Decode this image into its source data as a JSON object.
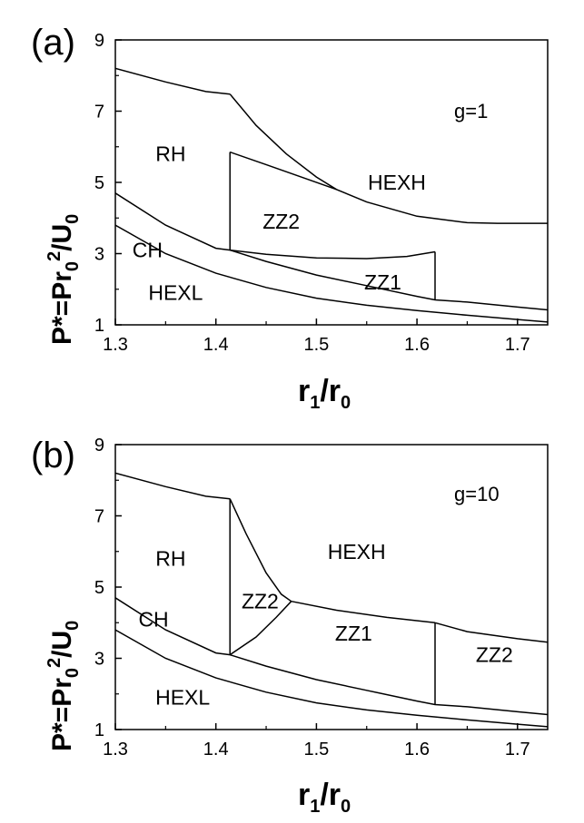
{
  "chart_data": [
    {
      "panel": "(a)",
      "type": "line",
      "annotation": "g=1",
      "xlim": [
        1.3,
        1.73
      ],
      "ylim": [
        1,
        9
      ],
      "xticks": [
        "1.3",
        "1.4",
        "1.5",
        "1.6",
        "1.7"
      ],
      "yticks": [
        "1",
        "3",
        "5",
        "7",
        "9"
      ],
      "xlabel": {
        "main": "r",
        "sub1": "1",
        "mid": "/r",
        "sub2": "0"
      },
      "ylabel": {
        "a": "P*=Pr",
        "b": "0",
        "c": "2",
        "d": "/U",
        "e": "0"
      },
      "regions": [
        {
          "name": "RH",
          "x": 1.355,
          "y": 5.8
        },
        {
          "name": "HEXH",
          "x": 1.58,
          "y": 5.0
        },
        {
          "name": "ZZ2",
          "x": 1.465,
          "y": 3.9
        },
        {
          "name": "CH",
          "x": 1.332,
          "y": 3.1
        },
        {
          "name": "ZZ1",
          "x": 1.566,
          "y": 2.2
        },
        {
          "name": "HEXL",
          "x": 1.36,
          "y": 1.9
        }
      ],
      "curves": [
        {
          "points": [
            [
              1.3,
              8.2
            ],
            [
              1.35,
              7.82
            ],
            [
              1.39,
              7.55
            ],
            [
              1.414,
              7.48
            ]
          ]
        },
        {
          "points": [
            [
              1.414,
              7.48
            ],
            [
              1.44,
              6.6
            ],
            [
              1.47,
              5.8
            ],
            [
              1.5,
              5.15
            ],
            [
              1.52,
              4.8
            ],
            [
              1.55,
              4.45
            ],
            [
              1.6,
              4.05
            ],
            [
              1.65,
              3.87
            ],
            [
              1.68,
              3.85
            ],
            [
              1.73,
              3.85
            ]
          ]
        },
        {
          "points": [
            [
              1.414,
              5.85
            ],
            [
              1.45,
              5.5
            ],
            [
              1.49,
              5.1
            ],
            [
              1.52,
              4.8
            ]
          ]
        },
        {
          "points": [
            [
              1.414,
              5.85
            ],
            [
              1.414,
              3.1
            ]
          ]
        },
        {
          "points": [
            [
              1.414,
              3.1
            ],
            [
              1.45,
              2.98
            ],
            [
              1.5,
              2.88
            ],
            [
              1.55,
              2.86
            ],
            [
              1.59,
              2.92
            ],
            [
              1.618,
              3.05
            ]
          ]
        },
        {
          "points": [
            [
              1.618,
              3.05
            ],
            [
              1.618,
              1.7
            ]
          ]
        },
        {
          "points": [
            [
              1.3,
              4.7
            ],
            [
              1.35,
              3.8
            ],
            [
              1.4,
              3.15
            ],
            [
              1.414,
              3.1
            ],
            [
              1.45,
              2.78
            ],
            [
              1.5,
              2.4
            ],
            [
              1.55,
              2.1
            ],
            [
              1.6,
              1.8
            ],
            [
              1.618,
              1.7
            ],
            [
              1.65,
              1.64
            ],
            [
              1.7,
              1.5
            ],
            [
              1.73,
              1.42
            ]
          ]
        },
        {
          "points": [
            [
              1.3,
              3.8
            ],
            [
              1.35,
              3.0
            ],
            [
              1.4,
              2.45
            ],
            [
              1.45,
              2.05
            ],
            [
              1.5,
              1.75
            ],
            [
              1.55,
              1.55
            ],
            [
              1.6,
              1.4
            ],
            [
              1.65,
              1.27
            ],
            [
              1.7,
              1.15
            ],
            [
              1.73,
              1.08
            ]
          ]
        }
      ]
    },
    {
      "panel": "(b)",
      "type": "line",
      "annotation": "g=10",
      "xlim": [
        1.3,
        1.73
      ],
      "ylim": [
        1,
        9
      ],
      "xticks": [
        "1.3",
        "1.4",
        "1.5",
        "1.6",
        "1.7"
      ],
      "yticks": [
        "1",
        "3",
        "5",
        "7",
        "9"
      ],
      "xlabel": {
        "main": "r",
        "sub1": "1",
        "mid": "/r",
        "sub2": "0"
      },
      "ylabel": {
        "a": "P*=Pr",
        "b": "0",
        "c": "2",
        "d": "/U",
        "e": "0"
      },
      "regions": [
        {
          "name": "RH",
          "x": 1.355,
          "y": 5.8
        },
        {
          "name": "HEXH",
          "x": 1.54,
          "y": 6.0
        },
        {
          "name": "ZZ2",
          "x": 1.444,
          "y": 4.6
        },
        {
          "name": "CH",
          "x": 1.338,
          "y": 4.1
        },
        {
          "name": "ZZ1",
          "x": 1.537,
          "y": 3.7
        },
        {
          "name": "ZZ2",
          "x": 1.677,
          "y": 3.1
        },
        {
          "name": "HEXL",
          "x": 1.367,
          "y": 1.9
        }
      ],
      "curves": [
        {
          "points": [
            [
              1.3,
              8.2
            ],
            [
              1.35,
              7.82
            ],
            [
              1.39,
              7.55
            ],
            [
              1.414,
              7.48
            ]
          ]
        },
        {
          "points": [
            [
              1.414,
              7.48
            ],
            [
              1.43,
              6.5
            ],
            [
              1.45,
              5.4
            ],
            [
              1.465,
              4.8
            ],
            [
              1.475,
              4.6
            ]
          ]
        },
        {
          "points": [
            [
              1.475,
              4.6
            ],
            [
              1.52,
              4.35
            ],
            [
              1.57,
              4.15
            ],
            [
              1.618,
              4.0
            ]
          ]
        },
        {
          "points": [
            [
              1.618,
              4.0
            ],
            [
              1.65,
              3.75
            ],
            [
              1.7,
              3.55
            ],
            [
              1.73,
              3.45
            ]
          ]
        },
        {
          "points": [
            [
              1.414,
              7.48
            ],
            [
              1.414,
              3.1
            ]
          ]
        },
        {
          "points": [
            [
              1.414,
              3.1
            ],
            [
              1.44,
              3.6
            ],
            [
              1.46,
              4.15
            ],
            [
              1.475,
              4.6
            ]
          ]
        },
        {
          "points": [
            [
              1.618,
              4.0
            ],
            [
              1.618,
              1.7
            ]
          ]
        },
        {
          "points": [
            [
              1.3,
              4.7
            ],
            [
              1.35,
              3.8
            ],
            [
              1.4,
              3.15
            ],
            [
              1.414,
              3.1
            ],
            [
              1.45,
              2.78
            ],
            [
              1.5,
              2.4
            ],
            [
              1.55,
              2.1
            ],
            [
              1.6,
              1.8
            ],
            [
              1.618,
              1.7
            ],
            [
              1.65,
              1.64
            ],
            [
              1.7,
              1.5
            ],
            [
              1.73,
              1.42
            ]
          ]
        },
        {
          "points": [
            [
              1.3,
              3.8
            ],
            [
              1.35,
              3.0
            ],
            [
              1.4,
              2.45
            ],
            [
              1.45,
              2.05
            ],
            [
              1.5,
              1.75
            ],
            [
              1.55,
              1.55
            ],
            [
              1.6,
              1.4
            ],
            [
              1.65,
              1.27
            ],
            [
              1.7,
              1.15
            ],
            [
              1.73,
              1.08
            ]
          ]
        }
      ]
    }
  ]
}
